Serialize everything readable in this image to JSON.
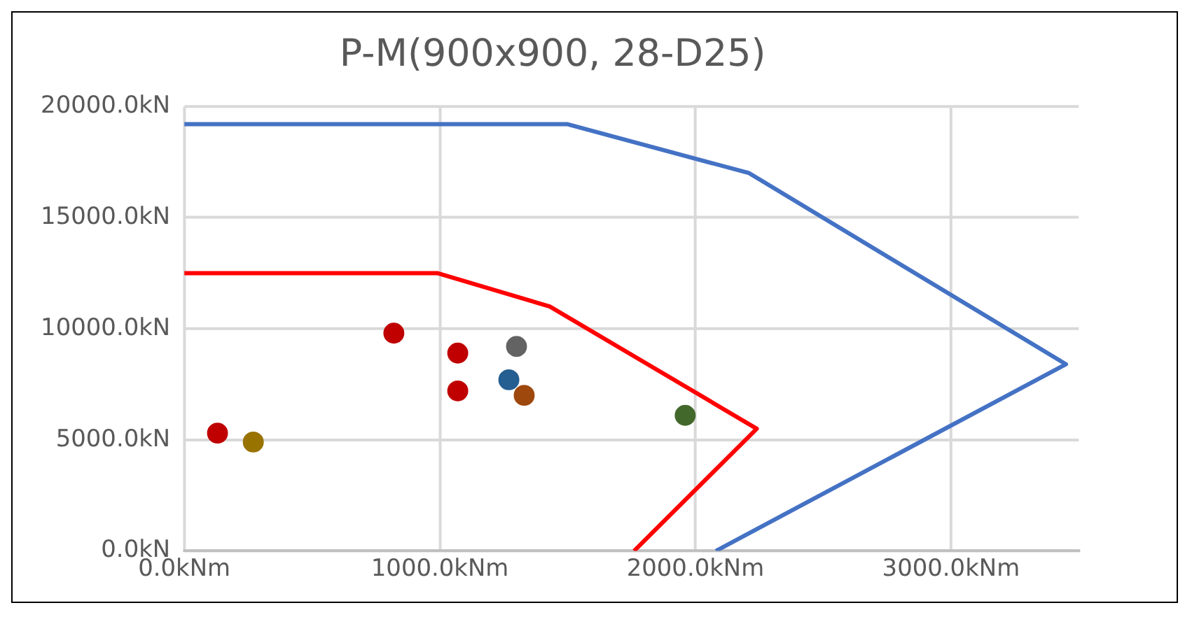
{
  "chart_data": {
    "type": "scatter",
    "title": "P-M(900x900, 28-D25)",
    "xlim": [
      0,
      3500
    ],
    "ylim": [
      0,
      20000
    ],
    "xticks": [
      {
        "value": 0,
        "label": "0.0kNm"
      },
      {
        "value": 1000,
        "label": "1000.0kNm"
      },
      {
        "value": 2000,
        "label": "2000.0kNm"
      },
      {
        "value": 3000,
        "label": "3000.0kNm"
      }
    ],
    "yticks": [
      {
        "value": 0,
        "label": "0.0kN"
      },
      {
        "value": 5000,
        "label": "5000.0kN"
      },
      {
        "value": 10000,
        "label": "10000.0kN"
      },
      {
        "value": 15000,
        "label": "15000.0kN"
      },
      {
        "value": 20000,
        "label": "20000.0kN"
      }
    ],
    "grid": true,
    "legend": false,
    "marker": "circle",
    "series": [
      {
        "type": "line",
        "color": "#4472c4",
        "marker": "none",
        "x": [
          0,
          1500,
          2210,
          3450,
          2080
        ],
        "values": [
          19200,
          19200,
          17000,
          8400,
          0
        ]
      },
      {
        "type": "line",
        "color": "#ff0000",
        "marker": "none",
        "x": [
          0,
          990,
          1430,
          2240,
          1760
        ],
        "values": [
          12500,
          12500,
          11000,
          5500,
          0
        ]
      },
      {
        "color": "#c00000",
        "x": [
          130
        ],
        "values": [
          5300
        ]
      },
      {
        "color": "#997300",
        "x": [
          270
        ],
        "values": [
          4900
        ]
      },
      {
        "color": "#c00000",
        "x": [
          820
        ],
        "values": [
          9800
        ]
      },
      {
        "color": "#c00000",
        "x": [
          1070
        ],
        "values": [
          8900
        ]
      },
      {
        "color": "#c00000",
        "x": [
          1070
        ],
        "values": [
          7200
        ]
      },
      {
        "color": "#636363",
        "x": [
          1300
        ],
        "values": [
          9200
        ]
      },
      {
        "color": "#255e91",
        "x": [
          1270
        ],
        "values": [
          7700
        ]
      },
      {
        "color": "#9e480e",
        "x": [
          1330
        ],
        "values": [
          7000
        ]
      },
      {
        "color": "#43682b",
        "x": [
          1960
        ],
        "values": [
          6100
        ]
      }
    ]
  }
}
